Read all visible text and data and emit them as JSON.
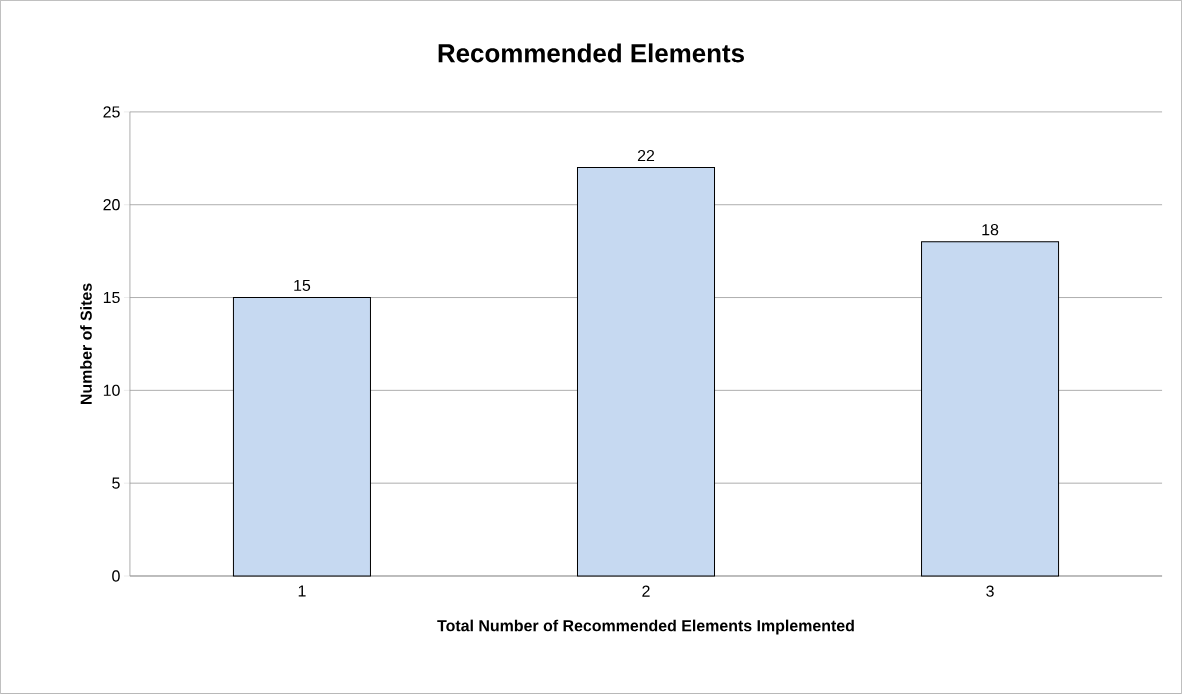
{
  "chart_data": {
    "type": "bar",
    "title": "Recommended Elements",
    "xlabel": "Total Number of Recommended Elements Implemented",
    "ylabel": "Number of Sites",
    "categories": [
      "1",
      "2",
      "3"
    ],
    "values": [
      15,
      22,
      18
    ],
    "color": "#c6d9f1",
    "ylim": [
      0,
      25
    ],
    "yticks": [
      0,
      5,
      10,
      15,
      20,
      25
    ],
    "grid": "y",
    "data_labels": true
  }
}
